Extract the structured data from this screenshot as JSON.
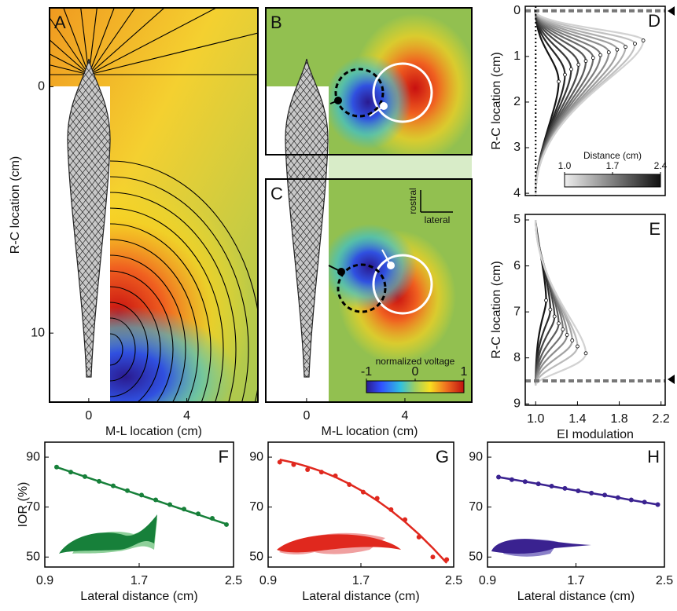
{
  "chart_data": [
    {
      "type": "field",
      "label": "A",
      "xlabel": "M-L location (cm)",
      "ylabel": "R-C location (cm)",
      "xlim": [
        -1.6,
        6.9
      ],
      "ylim": [
        -3.2,
        12.8
      ],
      "xticks": [
        0,
        4
      ],
      "yticks": [
        0,
        10
      ],
      "y_inverted": true
    },
    {
      "type": "field",
      "label": "B"
    },
    {
      "type": "field",
      "label": "C",
      "xlabel": "M-L location (cm)",
      "xlim": [
        -1.66,
        6.72
      ],
      "xticks": [
        0,
        4
      ],
      "annotations": [
        "rostral",
        "lateral"
      ],
      "colorbar": {
        "title": "normalized voltage",
        "lim": [
          -1,
          1
        ],
        "ticks": [
          -1,
          0,
          1
        ]
      }
    },
    {
      "type": "curves",
      "label": "D",
      "ylabel": "R-C location (cm)",
      "xlim": [
        0.9,
        2.24
      ],
      "ylim": [
        -0.1,
        4.05
      ],
      "yticks": [
        0,
        1,
        2,
        3,
        4
      ],
      "y_inverted": true,
      "x": [
        1.22,
        1.28,
        1.34,
        1.41,
        1.48,
        1.55,
        1.62,
        1.7,
        1.78,
        1.86,
        1.95,
        2.03
      ],
      "values": [
        1.55,
        1.4,
        1.28,
        1.18,
        1.1,
        1.03,
        0.97,
        0.91,
        0.85,
        0.79,
        0.72,
        0.65
      ],
      "reference_y": 0,
      "reference_x": 1.0,
      "colorbar": {
        "title": "Distance (cm)",
        "lim": [
          1,
          2.4
        ],
        "ticks": [
          {
            "value": 1,
            "label": "1.0"
          },
          1.7,
          2.4
        ]
      }
    },
    {
      "type": "curves",
      "label": "E",
      "ylabel": "R-C location (cm)",
      "xlabel": "EI modulation",
      "xlim": [
        0.9,
        2.24
      ],
      "ylim": [
        4.88,
        9.03
      ],
      "xticks": [
        {
          "value": 1,
          "label": "1.0"
        },
        1.4,
        1.8,
        2.2
      ],
      "yticks": [
        5,
        6,
        7,
        8,
        9
      ],
      "y_inverted": true,
      "x": [
        1.1,
        1.14,
        1.18,
        1.22,
        1.26,
        1.3,
        1.35,
        1.4,
        1.48
      ],
      "values": [
        6.75,
        6.95,
        7.1,
        7.25,
        7.38,
        7.5,
        7.62,
        7.75,
        7.9
      ],
      "reference_y": 8.5
    },
    {
      "type": "scatter",
      "label": "F",
      "color": "#17803a",
      "ylabel": "IOR (%)",
      "xlabel": "Lateral distance (cm)",
      "xlim": [
        0.9,
        2.5
      ],
      "ylim": [
        46,
        96
      ],
      "xticks": [
        0.9,
        1.7,
        2.5
      ],
      "yticks": [
        50,
        70,
        90
      ],
      "x": [
        1.0,
        1.12,
        1.24,
        1.36,
        1.48,
        1.6,
        1.72,
        1.84,
        1.96,
        2.08,
        2.2,
        2.32,
        2.44
      ],
      "values": [
        86,
        84,
        82.2,
        80.3,
        78.5,
        76.6,
        74.8,
        72.9,
        71,
        69.2,
        67.3,
        65.5,
        63
      ],
      "fit": [
        86,
        84.1,
        82.2,
        80.3,
        78.4,
        76.5,
        74.6,
        72.7,
        70.8,
        68.9,
        67,
        65.1,
        63.2
      ]
    },
    {
      "type": "scatter",
      "label": "G",
      "color": "#e0281e",
      "xlabel": "Lateral distance (cm)",
      "xlim": [
        0.9,
        2.5
      ],
      "ylim": [
        46,
        96
      ],
      "xticks": [
        0.9,
        1.7,
        2.5
      ],
      "yticks": [
        50,
        70,
        90
      ],
      "x": [
        1.0,
        1.12,
        1.24,
        1.36,
        1.48,
        1.6,
        1.72,
        1.84,
        1.96,
        2.08,
        2.2,
        2.32,
        2.44
      ],
      "values": [
        88,
        87,
        85,
        84,
        82.5,
        79,
        76,
        73.5,
        69,
        65,
        58,
        50,
        49
      ],
      "fit": [
        89,
        87.8,
        86.2,
        84.3,
        82,
        79.3,
        76.2,
        72.6,
        68.6,
        64.1,
        59.1,
        53.6,
        47.6
      ]
    },
    {
      "type": "scatter",
      "label": "H",
      "color": "#3a2290",
      "xlabel": "Lateral distance (cm)",
      "xlim": [
        0.9,
        2.5
      ],
      "ylim": [
        46,
        96
      ],
      "xticks": [
        0.9,
        1.7,
        2.5
      ],
      "yticks": [
        50,
        70,
        90
      ],
      "x": [
        1.0,
        1.12,
        1.24,
        1.36,
        1.48,
        1.6,
        1.72,
        1.84,
        1.96,
        2.08,
        2.2,
        2.32,
        2.44
      ],
      "values": [
        82,
        81,
        80.2,
        79.3,
        78.4,
        77.5,
        76.5,
        75.6,
        74.8,
        73.8,
        72.9,
        72,
        71
      ],
      "fit": [
        82,
        81.1,
        80.2,
        79.3,
        78.3,
        77.4,
        76.5,
        75.6,
        74.7,
        73.8,
        72.8,
        71.9,
        71
      ]
    }
  ]
}
